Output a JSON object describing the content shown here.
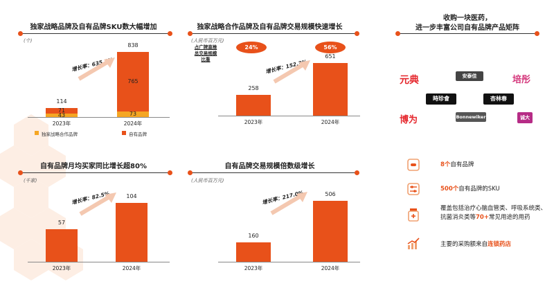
{
  "colors": {
    "accent": "#e8511a",
    "secondary": "#f5a623",
    "text": "#222222"
  },
  "panel1": {
    "title": "独家战略品牌及自有品牌SKU数大幅增加",
    "unit": "(个)",
    "growth": "增长率：635.1%",
    "legend": [
      "独家战略合作品牌",
      "自有品牌"
    ]
  },
  "panel2": {
    "title": "独家战略合作品牌及自有品牌交易规模快速增长",
    "unit": "(人民币百万元)",
    "note": "占广牌直推\n总交易规模\n比重",
    "pct_2023": "24%",
    "pct_2024": "56%",
    "growth": "增长率：152.3%"
  },
  "panel3": {
    "title": "自有品牌月均买家同比增长超80%",
    "unit": "(千家)",
    "growth": "增长率：82.5%"
  },
  "panel4": {
    "title": "自有品牌交易规模倍数级增长",
    "unit": "(人民币百万元)",
    "growth": "增长率：217.0%"
  },
  "panel5": {
    "title_line1": "收购一块医药，",
    "title_line2": "进一步丰富公司自有品牌产品矩阵",
    "logos": [
      "元典",
      "安泰佳",
      "培彤",
      "時珍會",
      "杏林春",
      "博为",
      "Bonnewiker",
      "诚大"
    ],
    "features": [
      {
        "icon": "pill-icon",
        "pre": "",
        "hl": "8个",
        "post": "自有品牌"
      },
      {
        "icon": "sliders-icon",
        "pre": "",
        "hl": "500个",
        "post": "自有品牌的SKU"
      },
      {
        "icon": "medicine-bottle-icon",
        "pre": "覆盖包括治疗心脑血管类、呼吸系统类、抗菌消炎类等",
        "hl": "70+",
        "post": "常见用途的用药"
      },
      {
        "icon": "chart-trend-icon",
        "pre": "主要的采购额来自",
        "hl": "连锁药店",
        "post": ""
      }
    ]
  },
  "chart_data": [
    {
      "type": "bar",
      "title": "独家战略品牌及自有品牌SKU数大幅增加",
      "categories": [
        "2023年",
        "2024年"
      ],
      "series": [
        {
          "name": "独家战略合作品牌",
          "values": [
            43,
            73
          ]
        },
        {
          "name": "自有品牌",
          "values": [
            71,
            765
          ]
        }
      ],
      "totals": [
        114,
        838
      ],
      "unit": "(个)",
      "ylim": [
        0,
        838
      ]
    },
    {
      "type": "bar",
      "title": "独家战略合作品牌及自有品牌交易规模快速增长",
      "categories": [
        "2023年",
        "2024年"
      ],
      "values": [
        258,
        651
      ],
      "unit": "(人民币百万元)",
      "ylim": [
        0,
        651
      ]
    },
    {
      "type": "bar",
      "title": "自有品牌月均买家同比增长超80%",
      "categories": [
        "2023年",
        "2024年"
      ],
      "values": [
        57,
        104
      ],
      "unit": "(千家)",
      "ylim": [
        0,
        104
      ]
    },
    {
      "type": "bar",
      "title": "自有品牌交易规模倍数级增长",
      "categories": [
        "2023年",
        "2024年"
      ],
      "values": [
        160,
        506
      ],
      "unit": "(人民币百万元)",
      "ylim": [
        0,
        506
      ]
    }
  ]
}
